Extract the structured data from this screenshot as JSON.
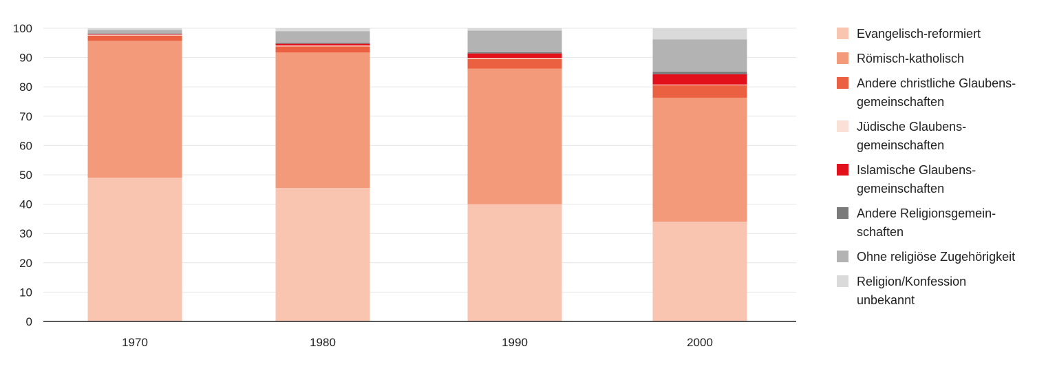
{
  "chart_data": {
    "type": "bar",
    "stacked": true,
    "categories": [
      "1970",
      "1980",
      "1990",
      "2000"
    ],
    "ylim": [
      0,
      100
    ],
    "yticks": [
      0,
      10,
      20,
      30,
      40,
      50,
      60,
      70,
      80,
      90,
      100
    ],
    "grid": true,
    "legend_position": "right",
    "series": [
      {
        "name": "Evangelisch-reformiert",
        "color": "#f9c4b0",
        "values": [
          49,
          45.5,
          40,
          34
        ]
      },
      {
        "name": "Römisch-katholisch",
        "color": "#f39a7b",
        "values": [
          46.7,
          46.2,
          46.2,
          42.3
        ]
      },
      {
        "name": "Andere christliche Glaubens-\ngemeinschaften",
        "color": "#ec6042",
        "values": [
          1.8,
          2.1,
          3.4,
          4.3
        ]
      },
      {
        "name": "Jüdische Glaubens-\ngemeinschaften",
        "color": "#fbe0d8",
        "values": [
          0.3,
          0.3,
          0.3,
          0.2
        ]
      },
      {
        "name": "Islamische Glaubens-\ngemeinschaften",
        "color": "#e2101b",
        "values": [
          0.2,
          0.6,
          1.5,
          3.5
        ]
      },
      {
        "name": "Andere Religionsgemein-\nschaften",
        "color": "#7a7a7a",
        "values": [
          0.2,
          0.3,
          0.4,
          0.8
        ]
      },
      {
        "name": "Ohne religiöse Zugehörigkeit",
        "color": "#b3b3b3",
        "values": [
          1.2,
          4.0,
          7.4,
          11.1
        ]
      },
      {
        "name": "Religion/Konfession\nunbekannt",
        "color": "#dadada",
        "values": [
          0.6,
          1.0,
          0.8,
          3.8
        ]
      }
    ]
  }
}
